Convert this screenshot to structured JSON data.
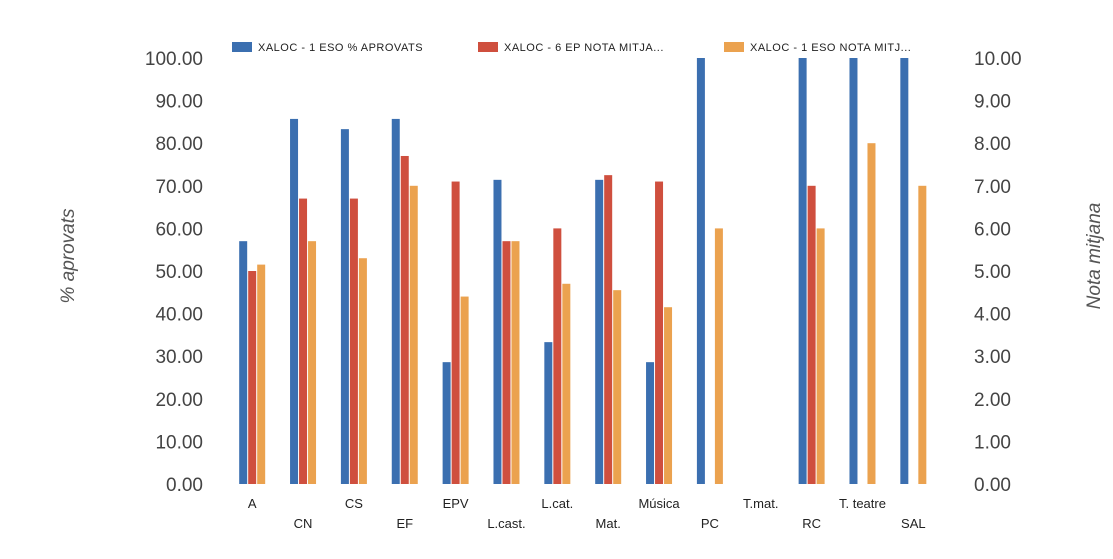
{
  "chart_data": {
    "type": "bar",
    "categories": [
      "A",
      "CN",
      "CS",
      "EF",
      "EPV",
      "L.cast.",
      "L.cat.",
      "Mat.",
      "Música",
      "PC",
      "T.mat.",
      "RC",
      "T. teatre",
      "SAL"
    ],
    "series": [
      {
        "name": "XALOC - 1 ESO % APROVATS",
        "axis": "left",
        "values": [
          57,
          85.7,
          83.3,
          85.7,
          28.6,
          71.4,
          33.3,
          71.4,
          28.6,
          100,
          null,
          100,
          100,
          100
        ]
      },
      {
        "name": "XALOC - 6 EP NOTA MITJA...",
        "axis": "right",
        "values": [
          5.0,
          6.7,
          6.7,
          7.7,
          7.1,
          5.7,
          6.0,
          7.25,
          7.1,
          null,
          null,
          7.0,
          null,
          null
        ]
      },
      {
        "name": "XALOC - 1 ESO NOTA MITJ...",
        "axis": "right",
        "values": [
          5.15,
          5.7,
          5.3,
          7.0,
          4.4,
          5.7,
          4.7,
          4.55,
          4.15,
          6.0,
          null,
          6.0,
          8.0,
          7.0
        ]
      }
    ],
    "ylabel": "% aprovats",
    "y2label": "Nota mitjana",
    "ylim": [
      0,
      100
    ],
    "y2lim": [
      0,
      10
    ],
    "yticks": [
      "0.00",
      "10.00",
      "20.00",
      "30.00",
      "40.00",
      "50.00",
      "60.00",
      "70.00",
      "80.00",
      "90.00",
      "100.00"
    ],
    "y2ticks": [
      "0.00",
      "1.00",
      "2.00",
      "3.00",
      "4.00",
      "5.00",
      "6.00",
      "7.00",
      "8.00",
      "9.00",
      "10.00"
    ],
    "legend_position": "top",
    "grid": false,
    "colors": [
      "#3b6fb0",
      "#cf4f3e",
      "#eba24f"
    ]
  }
}
